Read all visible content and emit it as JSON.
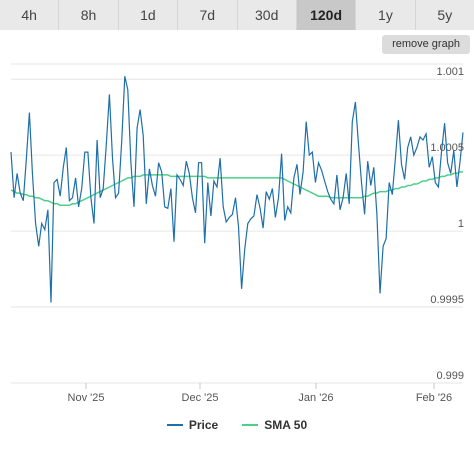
{
  "tabs": [
    {
      "label": "4h",
      "active": false
    },
    {
      "label": "8h",
      "active": false
    },
    {
      "label": "1d",
      "active": false
    },
    {
      "label": "7d",
      "active": false
    },
    {
      "label": "30d",
      "active": false
    },
    {
      "label": "120d",
      "active": true
    },
    {
      "label": "1y",
      "active": false
    },
    {
      "label": "5y",
      "active": false
    }
  ],
  "remove_graph_label": "remove graph",
  "colors": {
    "price": "#1f6fa8",
    "sma": "#4ccf8a",
    "grid": "#e6e6e6",
    "axis_text": "#555555"
  },
  "chart_data": {
    "type": "line",
    "y_ticks": [
      "1.001",
      "1.0005",
      "1",
      "0.9995",
      "0.999"
    ],
    "ylim": [
      0.999,
      1.001
    ],
    "x_ticks": [
      "Nov '25",
      "Dec '25",
      "Jan '26",
      "Feb '26"
    ],
    "series": [
      {
        "name": "Price",
        "values": [
          1.00052,
          1.00022,
          1.00038,
          1.00025,
          1.0002,
          1.00048,
          1.00078,
          1.00037,
          1.00005,
          0.9999,
          1.00005,
          1.00001,
          1.00014,
          0.99953,
          1.00032,
          1.00034,
          1.00023,
          1.00042,
          1.00055,
          1.0002,
          1.00022,
          1.00035,
          1.00016,
          1.00028,
          1.00052,
          1.00052,
          1.00022,
          1.00005,
          1.0006,
          1.00022,
          1.00028,
          1.00057,
          1.0009,
          1.00048,
          1.00022,
          1.00025,
          1.00059,
          1.00102,
          1.00093,
          1.00045,
          1.00016,
          1.00068,
          1.0008,
          1.00063,
          1.00018,
          1.00041,
          1.0003,
          1.00023,
          1.00045,
          1.00039,
          1.00016,
          1.00015,
          1.00028,
          0.99993,
          1.00037,
          1.00034,
          1.0003,
          1.00046,
          1.00038,
          1.00022,
          1.00012,
          1.00045,
          1.00045,
          0.99992,
          1.00032,
          1.0001,
          1.00033,
          1.00029,
          1.00048,
          1.00016,
          1.00006,
          1.00009,
          1.00011,
          1.00022,
          1.00003,
          0.99962,
          0.99988,
          1.00005,
          1.00008,
          1.0001,
          1.00024,
          1.00015,
          1.00002,
          1.00026,
          1.00021,
          1.00028,
          1.00009,
          1.00022,
          1.00051,
          1.00007,
          1.00016,
          1.00012,
          1.00035,
          1.00044,
          1.00024,
          1.00039,
          1.00072,
          1.0005,
          1.00052,
          1.00032,
          1.00045,
          1.0004,
          1.00033,
          1.00026,
          1.00021,
          1.00018,
          1.00037,
          1.00014,
          1.00022,
          1.00038,
          1.00018,
          1.00072,
          1.00085,
          1.00057,
          1.00032,
          1.00011,
          1.00046,
          1.0003,
          1.00042,
          1.00011,
          0.99959,
          0.9999,
          0.99995,
          1.00032,
          1.00024,
          1.00048,
          1.00073,
          1.00044,
          1.00034,
          1.00055,
          1.00062,
          1.0005,
          1.00055,
          1.00062,
          1.0006,
          1.00064,
          1.00042,
          1.00049,
          1.00032,
          1.00029,
          1.00052,
          1.00071,
          1.00045,
          1.00038,
          1.00053,
          1.00029,
          1.00045,
          1.00065
        ]
      },
      {
        "name": "SMA 50",
        "values": [
          1.00027,
          1.00026,
          1.00025,
          1.00025,
          1.00024,
          1.00024,
          1.00023,
          1.00023,
          1.00022,
          1.00022,
          1.00021,
          1.0002,
          1.0002,
          1.00019,
          1.00018,
          1.00018,
          1.00017,
          1.00017,
          1.00017,
          1.00017,
          1.00018,
          1.00018,
          1.00019,
          1.0002,
          1.00021,
          1.00022,
          1.00023,
          1.00024,
          1.00025,
          1.00026,
          1.00027,
          1.00028,
          1.00029,
          1.0003,
          1.00031,
          1.00032,
          1.00033,
          1.00034,
          1.00035,
          1.00035,
          1.00036,
          1.00036,
          1.00036,
          1.00037,
          1.00037,
          1.00037,
          1.00037,
          1.00037,
          1.00037,
          1.00037,
          1.00037,
          1.00037,
          1.00036,
          1.00036,
          1.00036,
          1.00036,
          1.00036,
          1.00036,
          1.00036,
          1.00036,
          1.00036,
          1.00036,
          1.00036,
          1.00036,
          1.00035,
          1.00035,
          1.00035,
          1.00035,
          1.00035,
          1.00035,
          1.00035,
          1.00035,
          1.00035,
          1.00035,
          1.00035,
          1.00035,
          1.00035,
          1.00035,
          1.00035,
          1.00035,
          1.00035,
          1.00035,
          1.00035,
          1.00035,
          1.00035,
          1.00035,
          1.00035,
          1.00035,
          1.00035,
          1.00034,
          1.00033,
          1.00032,
          1.00031,
          1.0003,
          1.00029,
          1.00028,
          1.00027,
          1.00026,
          1.00025,
          1.00024,
          1.00023,
          1.00023,
          1.00023,
          1.00023,
          1.00022,
          1.00022,
          1.00022,
          1.00022,
          1.00022,
          1.00022,
          1.00022,
          1.00022,
          1.00022,
          1.00022,
          1.00022,
          1.00023,
          1.00023,
          1.00024,
          1.00025,
          1.00025,
          1.00026,
          1.00026,
          1.00026,
          1.00027,
          1.00027,
          1.00028,
          1.00028,
          1.00029,
          1.00029,
          1.0003,
          1.0003,
          1.00031,
          1.00031,
          1.00032,
          1.00033,
          1.00033,
          1.00034,
          1.00034,
          1.00035,
          1.00035,
          1.00036,
          1.00036,
          1.00037,
          1.00037,
          1.00038,
          1.00038,
          1.00039,
          1.00039
        ]
      }
    ],
    "legend": [
      "Price",
      "SMA 50"
    ],
    "legend_position": "bottom-center",
    "grid": true
  }
}
